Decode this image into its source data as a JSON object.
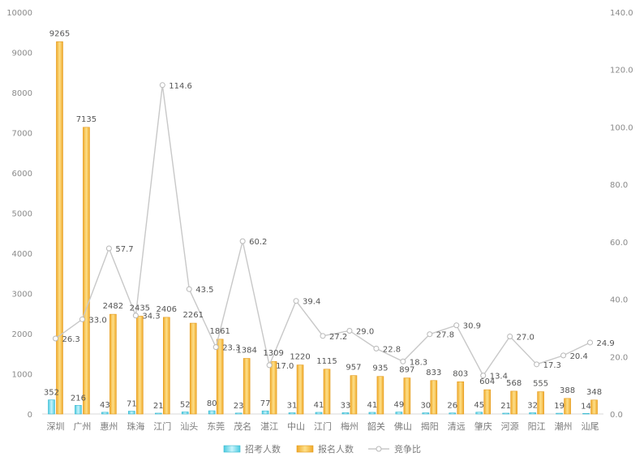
{
  "chart_data": {
    "type": "bar",
    "categories": [
      "深圳",
      "广州",
      "惠州",
      "珠海",
      "江门",
      "汕头",
      "东莞",
      "茂名",
      "湛江",
      "中山",
      "江门",
      "梅州",
      "韶关",
      "佛山",
      "揭阳",
      "清远",
      "肇庆",
      "河源",
      "阳江",
      "潮州",
      "汕尾"
    ],
    "series": [
      {
        "name": "招考人数",
        "type": "bar",
        "axis": "left",
        "color": "#5fd4e8",
        "values": [
          352,
          216,
          43,
          71,
          21,
          52,
          80,
          23,
          77,
          31,
          41,
          33,
          41,
          49,
          30,
          26,
          45,
          21,
          32,
          19,
          14
        ]
      },
      {
        "name": "报名人数",
        "type": "bar",
        "axis": "left",
        "color": "#f5b93a",
        "values": [
          9265,
          7135,
          2482,
          2435,
          2406,
          2261,
          1861,
          1384,
          1309,
          1220,
          1115,
          957,
          935,
          897,
          833,
          803,
          604,
          568,
          555,
          388,
          348
        ]
      },
      {
        "name": "竞争比",
        "type": "line",
        "axis": "right",
        "color": "#c8c8c8",
        "values": [
          26.3,
          33.0,
          57.7,
          34.3,
          114.6,
          43.5,
          23.3,
          60.2,
          17.0,
          39.4,
          27.2,
          29.0,
          22.8,
          18.3,
          27.8,
          30.9,
          13.4,
          27.0,
          17.3,
          20.4,
          24.9
        ],
        "labels": [
          "26.3",
          "33.0",
          "57.7",
          "34.3",
          "114.6",
          "43.5",
          "23.3",
          "60.2",
          "17.0",
          "39.4",
          "27.2",
          "29.0",
          "22.8",
          "18.3",
          "27.8",
          "30.9",
          "13.4",
          "27.0",
          "17.3",
          "20.4",
          "24.9"
        ]
      }
    ],
    "y_left": {
      "min": 0,
      "max": 10000,
      "ticks": [
        "0",
        "1000",
        "2000",
        "3000",
        "4000",
        "5000",
        "6000",
        "7000",
        "8000",
        "9000",
        "10000"
      ]
    },
    "y_right": {
      "min": 0,
      "max": 140,
      "ticks": [
        "0.0",
        "20.0",
        "40.0",
        "60.0",
        "80.0",
        "100.0",
        "120.0",
        "140.0"
      ]
    },
    "grid": false,
    "legend": "bottom",
    "title": "",
    "xlabel": "",
    "ylabel": ""
  }
}
